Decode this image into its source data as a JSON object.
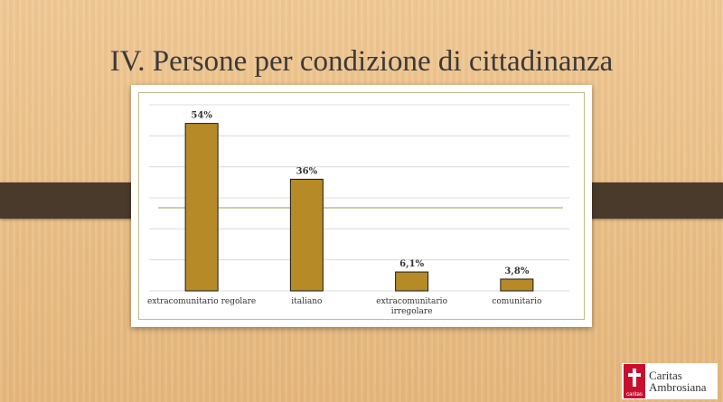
{
  "slide": {
    "title": "IV. Persone per condizione di cittadinanza"
  },
  "colors": {
    "bar": "#b68a27",
    "bar_stroke": "#1a1a1a",
    "grid": "#dcdcdc",
    "axis_line": "#b9c08a"
  },
  "chart_data": {
    "type": "bar",
    "categories": [
      "extracomunitario regolare",
      "italiano",
      "extracomunitario irregolare",
      "comunitario"
    ],
    "category_lines": [
      [
        "extracomunitario regolare"
      ],
      [
        "italiano"
      ],
      [
        "extracomunitario",
        "irregolare"
      ],
      [
        "comunitario"
      ]
    ],
    "values": [
      54,
      36,
      6.1,
      3.8
    ],
    "data_labels": [
      "54%",
      "36%",
      "6,1%",
      "3,8%"
    ],
    "ylim": [
      0,
      60
    ],
    "grid": true
  },
  "logo": {
    "mark_text": "caritas",
    "name_line1": "Caritas",
    "name_line2": "Ambrosiana"
  }
}
